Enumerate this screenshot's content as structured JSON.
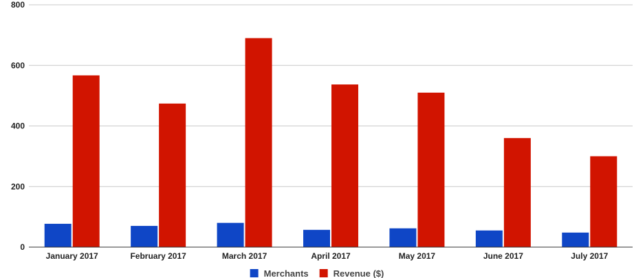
{
  "chart_data": {
    "type": "bar",
    "categories": [
      "January 2017",
      "February 2017",
      "March 2017",
      "April 2017",
      "May 2017",
      "June 2017",
      "July 2017"
    ],
    "series": [
      {
        "name": "Merchants",
        "color": "#0f46c6",
        "values": [
          77,
          70,
          80,
          57,
          62,
          55,
          48
        ]
      },
      {
        "name": "Revenue ($)",
        "color": "#d11400",
        "values": [
          567,
          474,
          690,
          537,
          510,
          360,
          300
        ]
      }
    ],
    "ylim": [
      0,
      800
    ],
    "yticks": [
      0,
      200,
      400,
      600,
      800
    ],
    "grid": true,
    "legend_position": "bottom-center",
    "title": "",
    "xlabel": "",
    "ylabel": ""
  }
}
